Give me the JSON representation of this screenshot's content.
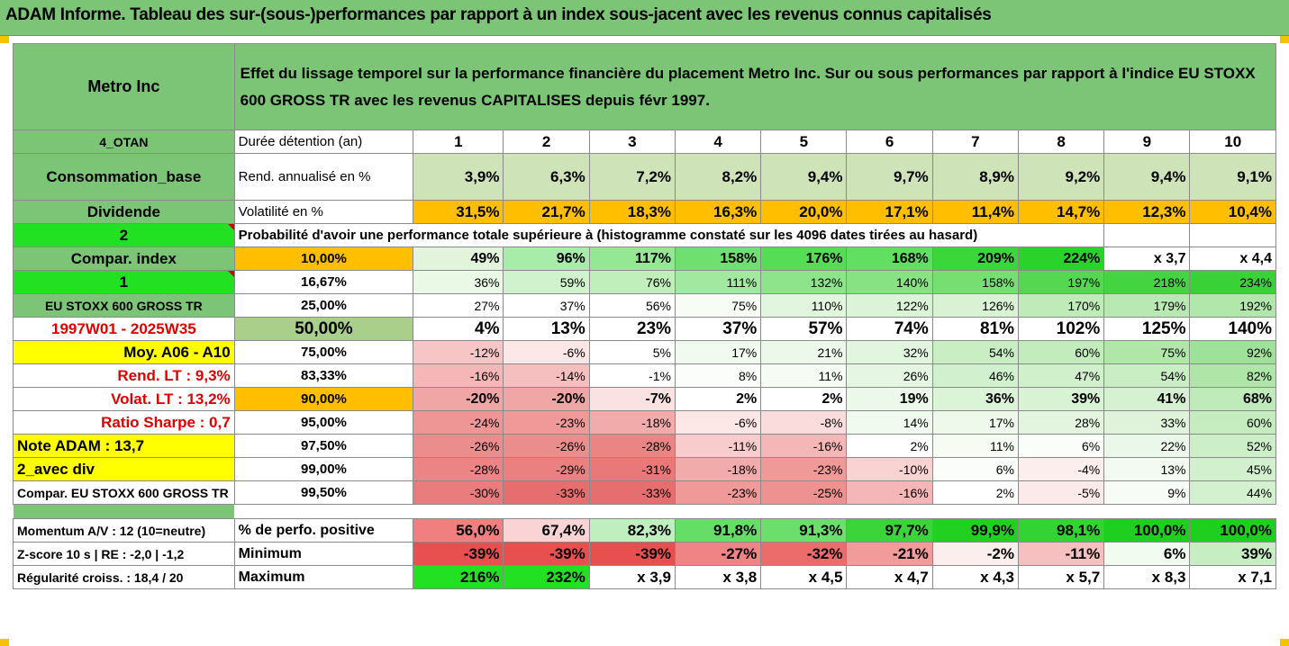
{
  "title": "ADAM Informe. Tableau des sur-(sous-)performances par rapport à un index sous-jacent avec les revenus connus capitalisés",
  "name": "Metro Inc",
  "description": "Effet du lissage temporel sur la performance financière du placement Metro Inc. Sur ou sous performances par rapport à l'indice EU STOXX 600 GROSS TR avec les revenus CAPITALISES depuis févr 1997.",
  "labels": {
    "otan": "4_OTAN",
    "conso": "Consommation_base",
    "dividende": "Dividende",
    "two": "2",
    "compar_index": "Compar. index",
    "one": "1",
    "index_name": "EU STOXX 600 GROSS TR",
    "period": "1997W01 - 2025W35",
    "moy": "Moy. A06 - A10",
    "rend_lt": "Rend. LT :    9,3%",
    "volat_lt": "Volat. LT :   13,2%",
    "sharpe": "Ratio Sharpe :    0,7",
    "note": "Note ADAM : 13,7",
    "avec_div": "2_avec div",
    "compar_full": "Compar. EU STOXX 600 GROSS TR",
    "momentum": "Momentum A/V : 12 (10=neutre)",
    "zscore": "Z-score 10 s  | RE : -2,0  | -1,2",
    "regul": "Régularité croiss. : 18,4 / 20"
  },
  "rows_header": {
    "duree": "Durée détention (an)",
    "rend": "Rend. annualisé en %",
    "volat": "Volatilité en %",
    "proba": "Probabilité d'avoir une performance totale supérieure à (histogramme constaté sur les 4096 dates tirées au hasard)",
    "perfo_pos": "% de perfo. positive",
    "minimum": "Minimum",
    "maximum": "Maximum"
  },
  "years": [
    "1",
    "2",
    "3",
    "4",
    "5",
    "6",
    "7",
    "8",
    "9",
    "10"
  ],
  "rend": [
    "3,9%",
    "6,3%",
    "7,2%",
    "8,2%",
    "9,4%",
    "9,7%",
    "8,9%",
    "9,2%",
    "9,4%",
    "9,1%"
  ],
  "volat": [
    "31,5%",
    "21,7%",
    "18,3%",
    "16,3%",
    "20,0%",
    "17,1%",
    "11,4%",
    "14,7%",
    "12,3%",
    "10,4%"
  ],
  "volat_colors": [
    "#ffbf00",
    "#ffbf00",
    "#ffbf00",
    "#ffbf00",
    "#ffbf00",
    "#ffbf00",
    "#ffbf00",
    "#ffbf00",
    "#ffbf00",
    "#ffbf00"
  ],
  "percentile_rows": [
    {
      "pct": "10,00%",
      "vals": [
        "49%",
        "96%",
        "117%",
        "158%",
        "176%",
        "168%",
        "209%",
        "224%",
        "x 3,7",
        "x 4,4"
      ],
      "colors": [
        "#e2f5dc",
        "#a8ecaa",
        "#94e894",
        "#6fe06f",
        "#55dd55",
        "#60df60",
        "#3ad63a",
        "#2ad22a",
        "#ffffff",
        "#ffffff"
      ]
    },
    {
      "pct": "16,67%",
      "vals": [
        "36%",
        "59%",
        "76%",
        "111%",
        "132%",
        "140%",
        "158%",
        "197%",
        "218%",
        "234%"
      ],
      "colors": [
        "#eaf8e6",
        "#d0f2cc",
        "#c1efbc",
        "#a3e8a0",
        "#8ee48b",
        "#86e283",
        "#75df72",
        "#55d752",
        "#44d341",
        "#3ad038"
      ]
    },
    {
      "pct": "25,00%",
      "vals": [
        "27%",
        "37%",
        "56%",
        "75%",
        "110%",
        "122%",
        "126%",
        "170%",
        "179%",
        "192%"
      ],
      "colors": [
        "#ffffff",
        "#ffffff",
        "#ffffff",
        "#f7fcf5",
        "#e2f5de",
        "#dbf3d6",
        "#d8f2d3",
        "#bfebb9",
        "#b9e9b3",
        "#b1e7ab"
      ]
    },
    {
      "pct": "50,00%",
      "vals": [
        "4%",
        "13%",
        "23%",
        "37%",
        "57%",
        "74%",
        "81%",
        "102%",
        "125%",
        "140%"
      ],
      "colors": [
        "#ffffff",
        "#ffffff",
        "#ffffff",
        "#ffffff",
        "#ffffff",
        "#ffffff",
        "#ffffff",
        "#ffffff",
        "#ffffff",
        "#ffffff"
      ]
    },
    {
      "pct": "75,00%",
      "vals": [
        "-12%",
        "-6%",
        "5%",
        "17%",
        "21%",
        "32%",
        "54%",
        "60%",
        "75%",
        "92%"
      ],
      "colors": [
        "#f7c5c5",
        "#fde6e6",
        "#ffffff",
        "#f1faef",
        "#ecf8e9",
        "#e2f5de",
        "#c9eec4",
        "#c2ecbc",
        "#b0e7a9",
        "#9ee29a"
      ]
    },
    {
      "pct": "83,33%",
      "vals": [
        "-16%",
        "-14%",
        "-1%",
        "8%",
        "11%",
        "26%",
        "46%",
        "47%",
        "54%",
        "82%"
      ],
      "colors": [
        "#f4b6b6",
        "#f6bfbf",
        "#ffffff",
        "#fafdf9",
        "#f6fbf4",
        "#e5f6e2",
        "#d1f0cd",
        "#d0f0cc",
        "#c9eec4",
        "#aee6a8"
      ]
    },
    {
      "pct": "90,00%",
      "vals": [
        "-20%",
        "-20%",
        "-7%",
        "2%",
        "2%",
        "19%",
        "36%",
        "39%",
        "41%",
        "68%"
      ],
      "colors": [
        "#f1a6a6",
        "#f1a6a6",
        "#fbe2e2",
        "#ffffff",
        "#ffffff",
        "#ecf8e9",
        "#dbf3d7",
        "#d8f2d4",
        "#d6f1d2",
        "#bfeab9"
      ]
    },
    {
      "pct": "95,00%",
      "vals": [
        "-24%",
        "-23%",
        "-18%",
        "-6%",
        "-8%",
        "14%",
        "17%",
        "28%",
        "33%",
        "60%"
      ],
      "colors": [
        "#ee9595",
        "#ef9999",
        "#f2abab",
        "#fce6e6",
        "#fadcdc",
        "#f1faef",
        "#eef9ec",
        "#e3f5df",
        "#def3da",
        "#c5ecbf"
      ]
    },
    {
      "pct": "97,50%",
      "vals": [
        "-26%",
        "-26%",
        "-28%",
        "-11%",
        "-16%",
        "2%",
        "11%",
        "6%",
        "22%",
        "52%"
      ],
      "colors": [
        "#ec8d8d",
        "#ec8d8d",
        "#eb8585",
        "#f8cccc",
        "#f4b6b6",
        "#ffffff",
        "#f6fbf4",
        "#fbfdfa",
        "#ebf7e8",
        "#cdefc8"
      ]
    },
    {
      "pct": "99,00%",
      "vals": [
        "-28%",
        "-29%",
        "-31%",
        "-18%",
        "-23%",
        "-10%",
        "6%",
        "-4%",
        "13%",
        "45%"
      ],
      "colors": [
        "#eb8585",
        "#ea8080",
        "#e97878",
        "#f2abab",
        "#ef9999",
        "#f9d2d2",
        "#fbfdfa",
        "#fdeeee",
        "#f3faf1",
        "#d2f0ce"
      ]
    },
    {
      "pct": "99,50%",
      "vals": [
        "-30%",
        "-33%",
        "-33%",
        "-23%",
        "-25%",
        "-16%",
        "2%",
        "-5%",
        "9%",
        "44%"
      ],
      "colors": [
        "#e97c7c",
        "#e76e6e",
        "#e76e6e",
        "#ef9999",
        "#ed9191",
        "#f4b6b6",
        "#ffffff",
        "#fce9e9",
        "#f8fcf7",
        "#d3f0cf"
      ]
    }
  ],
  "perfo_pos": {
    "vals": [
      "56,0%",
      "67,4%",
      "82,3%",
      "91,8%",
      "91,3%",
      "97,7%",
      "99,9%",
      "98,1%",
      "100,0%",
      "100,0%"
    ],
    "colors": [
      "#f07f7f",
      "#fad4d4",
      "#bfeebf",
      "#66dd66",
      "#6bde6b",
      "#3bd53b",
      "#22d022",
      "#33d333",
      "#1fcf1f",
      "#1fcf1f"
    ]
  },
  "minimum": {
    "vals": [
      "-39%",
      "-39%",
      "-39%",
      "-27%",
      "-32%",
      "-21%",
      "-2%",
      "-11%",
      "6%",
      "39%"
    ],
    "colors": [
      "#e85050",
      "#e85050",
      "#e85050",
      "#f08484",
      "#ec6b6b",
      "#f29b9b",
      "#fdeeee",
      "#f7c0c0",
      "#f1fbef",
      "#c7eec2"
    ]
  },
  "maximum": {
    "vals": [
      "216%",
      "232%",
      "x 3,9",
      "x 3,8",
      "x 4,5",
      "x 4,7",
      "x 4,3",
      "x 5,7",
      "x 8,3",
      "x 7,1"
    ],
    "colors": [
      "#22e022",
      "#22e022",
      "#ffffff",
      "#ffffff",
      "#ffffff",
      "#ffffff",
      "#ffffff",
      "#ffffff",
      "#ffffff",
      "#ffffff"
    ]
  }
}
